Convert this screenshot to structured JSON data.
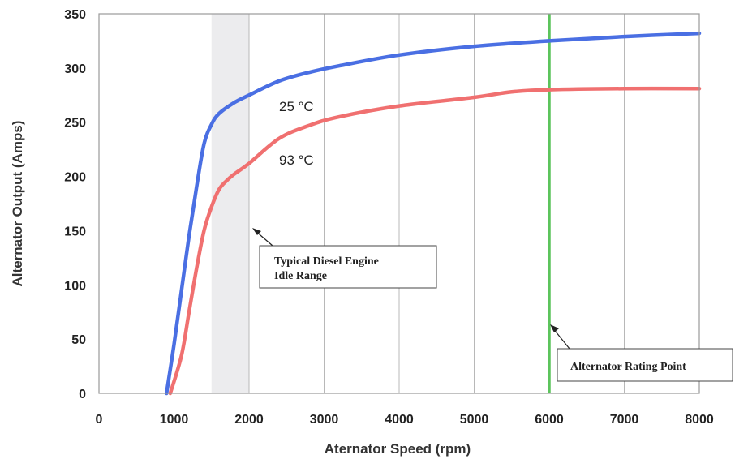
{
  "chart_data": {
    "type": "line",
    "xlabel": "Aternator Speed (rpm)",
    "ylabel": "Alternator Output (Amps)",
    "xlim": [
      0,
      8000
    ],
    "ylim": [
      0,
      350
    ],
    "xticks": [
      0,
      1000,
      2000,
      3000,
      4000,
      5000,
      6000,
      7000,
      8000
    ],
    "yticks": [
      0,
      50,
      100,
      150,
      200,
      250,
      300,
      350
    ],
    "grid": "vertical",
    "series": [
      {
        "name": "25 °C",
        "color": "#4a6fe3",
        "x": [
          900,
          1000,
          1100,
          1200,
          1300,
          1400,
          1500,
          1600,
          1800,
          2000,
          2400,
          2800,
          3200,
          4000,
          5000,
          6000,
          7000,
          8000
        ],
        "y": [
          0,
          45,
          95,
          145,
          190,
          230,
          248,
          258,
          268,
          275,
          288,
          296,
          302,
          312,
          320,
          325,
          329,
          332
        ]
      },
      {
        "name": "93 °C",
        "color": "#f07070",
        "x": [
          950,
          1100,
          1200,
          1300,
          1400,
          1500,
          1600,
          1700,
          1800,
          2000,
          2400,
          2800,
          3200,
          4000,
          5000,
          5500,
          6000,
          7000,
          8000
        ],
        "y": [
          0,
          35,
          75,
          115,
          150,
          172,
          188,
          196,
          202,
          212,
          235,
          247,
          255,
          265,
          273,
          278,
          280,
          281,
          281
        ]
      }
    ],
    "idle_band": {
      "x_start": 1500,
      "x_end": 2000
    },
    "rating_line": {
      "x": 6000,
      "color": "#5cc45c"
    },
    "annotations": {
      "idle": [
        "Typical Diesel Engine",
        "Idle Range"
      ],
      "rating": "Alternator Rating Point"
    }
  }
}
